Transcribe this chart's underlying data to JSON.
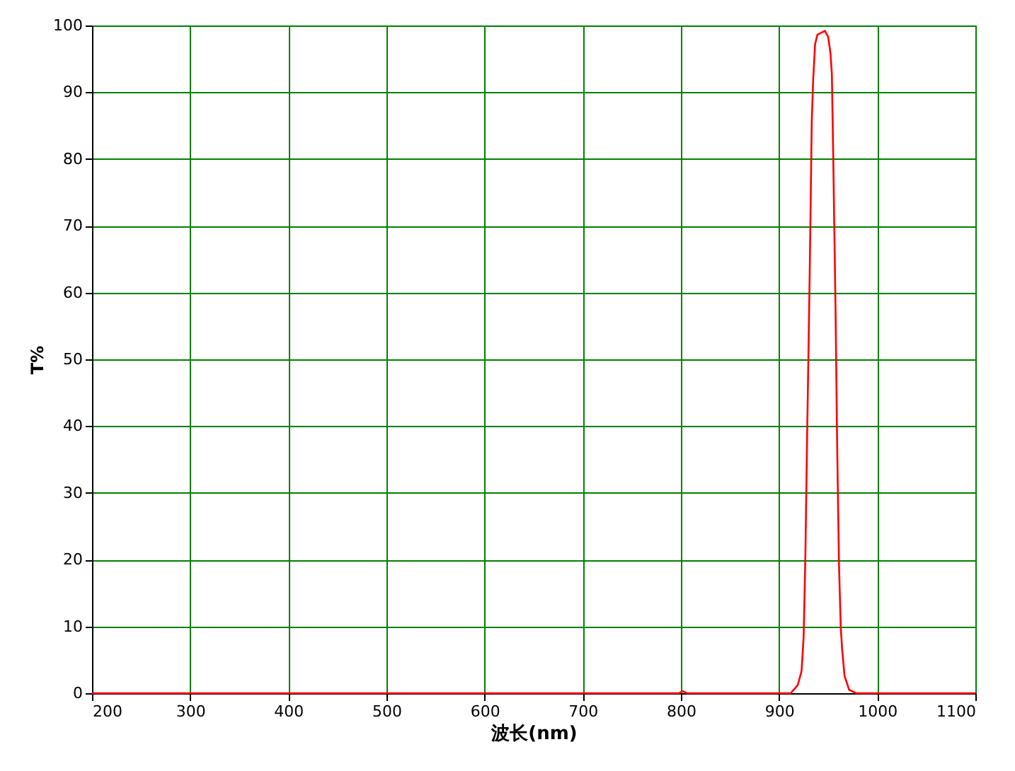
{
  "chart_data": {
    "type": "line",
    "xlabel": "波长(nm)",
    "ylabel": "T%",
    "x": [
      200,
      798,
      802,
      806,
      900,
      911.9,
      919,
      922.9,
      925,
      926.7,
      928.6,
      930,
      931.4,
      933.3,
      934.8,
      936.7,
      939,
      946.7,
      950,
      952.4,
      953.8,
      955.2,
      956.2,
      957.6,
      959,
      960,
      961,
      962.9,
      964.3,
      966.7,
      971.4,
      978.6,
      1100
    ],
    "series": [
      {
        "color": "#ff0000",
        "values": [
          0,
          0,
          0.3,
          0,
          0,
          0,
          1.2,
          3.3,
          8.3,
          19.6,
          38.6,
          51.3,
          64.7,
          85.6,
          92,
          97.2,
          98.6,
          99.2,
          98.3,
          95.8,
          92.7,
          80.3,
          70.4,
          57,
          39.3,
          29.4,
          19.6,
          9.7,
          6.5,
          2.6,
          0.5,
          0,
          0
        ]
      }
    ],
    "xlim": [
      200,
      1100
    ],
    "xticks": [
      200,
      300,
      400,
      500,
      600,
      700,
      800,
      900,
      1000,
      1100
    ],
    "ylim": [
      0,
      100
    ],
    "yticks": [
      0,
      10,
      20,
      30,
      40,
      50,
      60,
      70,
      80,
      90,
      100
    ],
    "grid": true,
    "marker": "none",
    "line_style": "solid"
  }
}
